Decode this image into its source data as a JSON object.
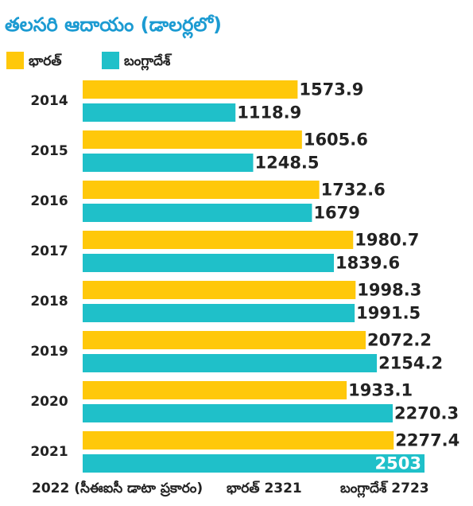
{
  "chart_data": {
    "type": "bar",
    "orientation": "horizontal",
    "title": "తలసరి ఆదాయం (డాలర్లలో)",
    "categories": [
      "2014",
      "2015",
      "2016",
      "2017",
      "2018",
      "2019",
      "2020",
      "2021"
    ],
    "series": [
      {
        "name": "భారత్",
        "color": "#ffc80a",
        "values": [
          1573.9,
          1605.6,
          1732.6,
          1980.7,
          1998.3,
          2072.2,
          1933.1,
          2277.4
        ]
      },
      {
        "name": "బంగ్లాదేశ్",
        "color": "#1fc0c9",
        "values": [
          1118.9,
          1248.5,
          1679,
          1839.6,
          1991.5,
          2154.2,
          2270.3,
          2503
        ]
      }
    ],
    "footer": {
      "label": "2022 (సీఈఐసీ డాటా ప్రకారం)",
      "india": "భారత్ 2321",
      "bangladesh": "బంగ్లాదేశ్ 2723"
    }
  }
}
